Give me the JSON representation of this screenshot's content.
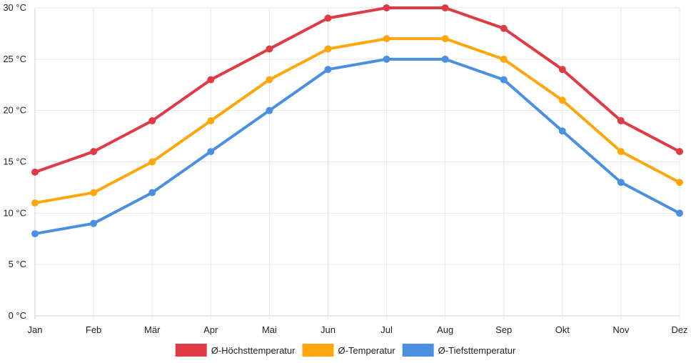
{
  "chart_data": {
    "type": "line",
    "categories": [
      "Jan",
      "Feb",
      "Mär",
      "Apr",
      "Mai",
      "Jun",
      "Jul",
      "Aug",
      "Sep",
      "Okt",
      "Nov",
      "Dez"
    ],
    "y_ticks": [
      "0 °C",
      "5 °C",
      "10 °C",
      "15 °C",
      "20 °C",
      "25 °C",
      "30 °C"
    ],
    "ylim": [
      0,
      30
    ],
    "y_step": 5,
    "grid": true,
    "legend_position": "bottom",
    "series": [
      {
        "name": "Ø-Höchsttemperatur",
        "color": "#e03a45",
        "values": [
          14,
          16,
          19,
          23,
          26,
          29,
          30,
          30,
          28,
          24,
          19,
          16
        ]
      },
      {
        "name": "Ø-Temperatur",
        "color": "#fda70c",
        "values": [
          11,
          12,
          15,
          19,
          23,
          26,
          27,
          27,
          25,
          21,
          16,
          13
        ]
      },
      {
        "name": "Ø-Tiefsttemperatur",
        "color": "#4a8fe0",
        "values": [
          8,
          9,
          12,
          16,
          20,
          24,
          25,
          25,
          23,
          18,
          13,
          10
        ]
      }
    ]
  }
}
